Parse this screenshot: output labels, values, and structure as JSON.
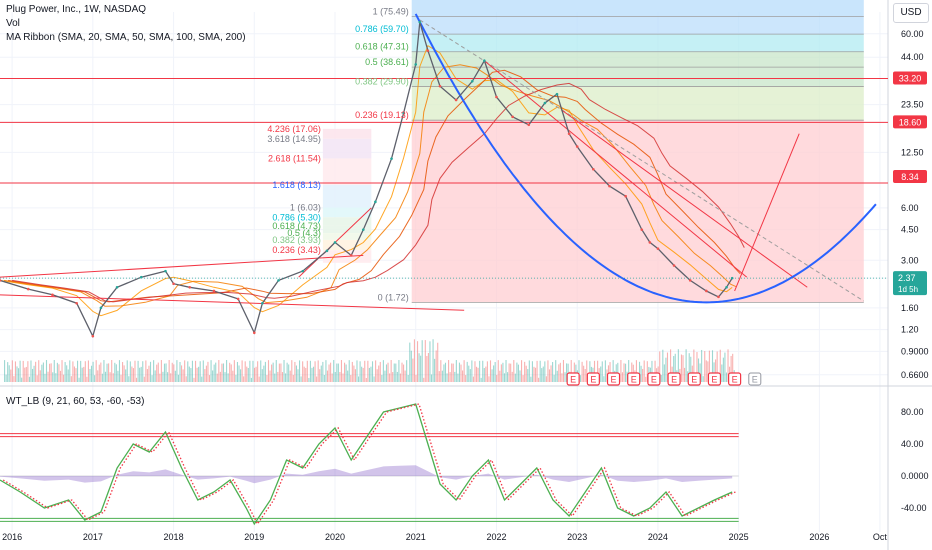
{
  "header": {
    "symbol_line": "Plug Power, Inc., 1W, NASDAQ",
    "vol_label": "Vol",
    "ma_ribbon_label": "MA Ribbon (SMA, 20, SMA, 50, SMA, 100, SMA, 200)",
    "currency": "USD",
    "indicator_label": "WT_LB (9, 21, 60, 53, -60, -53)"
  },
  "chart_data": [
    {
      "type": "line",
      "title": "Plug Power, Inc., 1W, NASDAQ",
      "y_scale": "log",
      "ylim": [
        0.6,
        80
      ],
      "y_ticks": [
        "60.00",
        "44.00",
        "33.20",
        "23.50",
        "18.60",
        "12.50",
        "8.34",
        "6.00",
        "4.50",
        "3.00",
        "2.37",
        "1.60",
        "1.20",
        "0.9000",
        "0.6600"
      ],
      "x_ticks": [
        "2016",
        "2017",
        "2018",
        "2019",
        "2020",
        "2021",
        "2022",
        "2023",
        "2024",
        "2025",
        "2026",
        "Oct"
      ],
      "xlim": [
        2015.85,
        2026.85
      ],
      "price_series": {
        "name": "",
        "x": [
          2015.85,
          2016.2,
          2016.5,
          2016.8,
          2017.0,
          2017.1,
          2017.3,
          2017.6,
          2017.9,
          2018.0,
          2018.2,
          2018.5,
          2018.8,
          2019.0,
          2019.1,
          2019.3,
          2019.6,
          2019.9,
          2020.0,
          2020.2,
          2020.35,
          2020.5,
          2020.7,
          2020.85,
          2021.0,
          2021.05,
          2021.15,
          2021.3,
          2021.5,
          2021.7,
          2021.85,
          2022.0,
          2022.2,
          2022.4,
          2022.6,
          2022.75,
          2022.9,
          2023.0,
          2023.2,
          2023.4,
          2023.6,
          2023.8,
          2023.9,
          2024.0,
          2024.2,
          2024.4,
          2024.6,
          2024.75,
          2024.85,
          2024.92
        ],
        "y": [
          2.3,
          2.05,
          1.9,
          1.7,
          1.1,
          1.6,
          2.1,
          2.4,
          2.6,
          2.2,
          2.1,
          2.0,
          1.8,
          1.15,
          1.7,
          2.3,
          2.6,
          3.4,
          3.8,
          3.2,
          4.5,
          6.5,
          11.5,
          21.0,
          40.0,
          70.0,
          48.0,
          30.0,
          25.0,
          32.0,
          42.0,
          26.0,
          20.0,
          18.0,
          24.0,
          27.0,
          16.0,
          13.5,
          10.0,
          8.0,
          7.0,
          4.5,
          3.8,
          3.5,
          2.8,
          2.3,
          2.0,
          1.85,
          2.1,
          2.37
        ]
      },
      "current_price": "2.37",
      "countdown": "1d 5h",
      "horizontal_levels": [
        "33.20",
        "18.60",
        "8.34",
        "8.34"
      ],
      "fib_retracement_major": [
        "1 (75.49)",
        "0.786 (59.70)",
        "0.618 (47.31)",
        "0.5 (38.61)",
        "0.382 (29.90)",
        "0.236 (19.13)",
        "0 (1.72)"
      ],
      "fib_extension_minor": [
        "4.236 (17.06)",
        "3.618 (14.95)",
        "2.618 (11.54)",
        "1.618 (8.13)",
        "1 (6.03)",
        "0.786 (5.30)",
        "0.618 (4.73)",
        "0.5 (4.3)",
        "0.382 (3.93)",
        "0.236 (3.43)"
      ],
      "earnings_markers": [
        "E",
        "E",
        "E",
        "E",
        "E",
        "E",
        "E",
        "E",
        "E"
      ],
      "upcoming_marker": "E"
    },
    {
      "type": "line",
      "title": "WT_LB (9, 21, 60, 53, -60, -53)",
      "ylim": [
        -70,
        105
      ],
      "y_ticks": [
        "80.00",
        "40.00",
        "0.0000",
        "-40.00"
      ],
      "series": [
        {
          "name": "",
          "x": [
            2015.85,
            2016.1,
            2016.4,
            2016.7,
            2016.9,
            2017.1,
            2017.3,
            2017.5,
            2017.7,
            2017.9,
            2018.1,
            2018.3,
            2018.5,
            2018.7,
            2018.9,
            2019.0,
            2019.2,
            2019.4,
            2019.6,
            2019.8,
            2020.0,
            2020.2,
            2020.4,
            2020.6,
            2020.8,
            2021.0,
            2021.15,
            2021.3,
            2021.5,
            2021.7,
            2021.9,
            2022.1,
            2022.3,
            2022.5,
            2022.7,
            2022.9,
            2023.1,
            2023.3,
            2023.5,
            2023.7,
            2023.9,
            2024.1,
            2024.3,
            2024.5,
            2024.7,
            2024.92
          ],
          "y": [
            -5,
            -20,
            -40,
            -30,
            -55,
            -45,
            10,
            40,
            30,
            55,
            10,
            -30,
            -20,
            -5,
            -40,
            -60,
            -30,
            20,
            10,
            40,
            60,
            20,
            50,
            80,
            85,
            90,
            40,
            -10,
            -30,
            0,
            20,
            -30,
            -10,
            10,
            -30,
            -50,
            -20,
            10,
            -40,
            -50,
            -40,
            -20,
            -50,
            -40,
            -30,
            -20
          ]
        }
      ],
      "upper_band": "53",
      "lower_band": "-53"
    }
  ]
}
